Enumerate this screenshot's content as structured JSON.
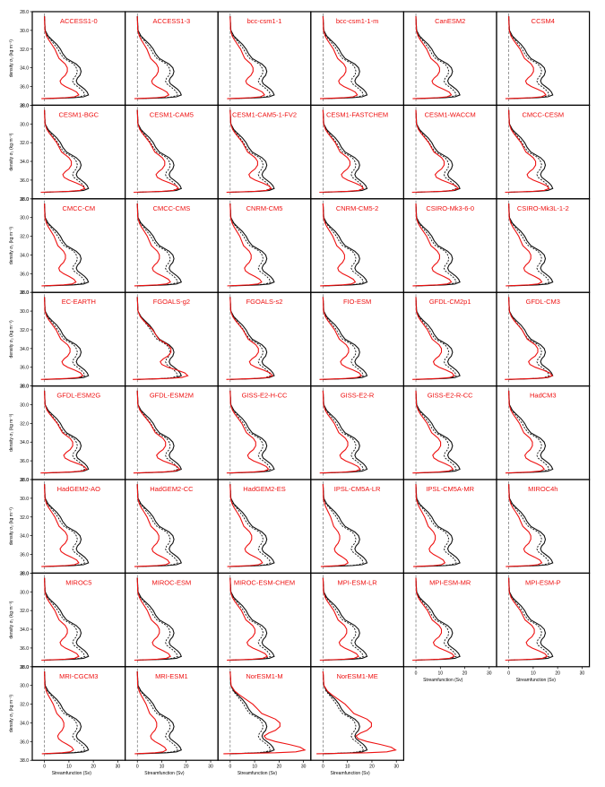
{
  "figure": {
    "colors": {
      "model": "#ee1111",
      "reference": "#111111",
      "axes": "#000000",
      "zero_line": "#555555"
    },
    "ylabel": "density σ₂ (kg m⁻³)",
    "xlabel": "Streamfunction (Sv)",
    "y_ticks": [
      "28.0",
      "30.0",
      "32.0",
      "34.0",
      "36.0",
      "38.0"
    ],
    "x_ticks": [
      "0",
      "10",
      "20",
      "30"
    ],
    "models": [
      "ACCESS1-0",
      "ACCESS1-3",
      "bcc-csm1-1",
      "bcc-csm1-1-m",
      "CanESM2",
      "CCSM4",
      "CESM1-BGC",
      "CESM1-CAM5",
      "CESM1-CAM5-1-FV2",
      "CESM1-FASTCHEM",
      "CESM1-WACCM",
      "CMCC-CESM",
      "CMCC-CM",
      "CMCC-CMS",
      "CNRM-CM5",
      "CNRM-CM5-2",
      "CSIRO-Mk3-6-0",
      "CSIRO-Mk3L-1-2",
      "EC-EARTH",
      "FGOALS-g2",
      "FGOALS-s2",
      "FIO-ESM",
      "GFDL-CM2p1",
      "GFDL-CM3",
      "GFDL-ESM2G",
      "GFDL-ESM2M",
      "GISS-E2-H-CC",
      "GISS-E2-R",
      "GISS-E2-R-CC",
      "HadCM3",
      "HadGEM2-AO",
      "HadGEM2-CC",
      "HadGEM2-ES",
      "IPSL-CM5A-LR",
      "IPSL-CM5A-MR",
      "MIROC4h",
      "MIROC5",
      "MIROC-ESM",
      "MIROC-ESM-CHEM",
      "MPI-ESM-LR",
      "MPI-ESM-MR",
      "MPI-ESM-P",
      "MRI-CGCM3",
      "MRI-ESM1",
      "NorESM1-M",
      "NorESM1-ME"
    ]
  },
  "chart_data": {
    "type": "line",
    "layout": "small multiples, 6 columns x 8 rows (46 panels)",
    "xlim": [
      -5,
      33
    ],
    "ylim": [
      38.0,
      28.0
    ],
    "y_inverted": true,
    "grid": false,
    "reference": {
      "description": "black solid and dashed reference profiles (same in every panel)",
      "solid": {
        "x": [
          0,
          0.3,
          1.5,
          3,
          5,
          6.5,
          7.5,
          9,
          11,
          13,
          14.5,
          15,
          14.5,
          13.5,
          13,
          13.5,
          15,
          16.5,
          17.5,
          18,
          16,
          12,
          6,
          0
        ],
        "y": [
          28.5,
          30.0,
          30.6,
          31.0,
          31.5,
          32.0,
          32.5,
          33.0,
          33.3,
          33.6,
          34.0,
          34.4,
          34.8,
          35.1,
          35.4,
          35.7,
          36.0,
          36.3,
          36.6,
          36.9,
          37.1,
          37.2,
          37.25,
          37.3
        ]
      },
      "dashed": {
        "x": [
          0,
          0.3,
          1.2,
          2.5,
          4,
          5.5,
          6.5,
          8,
          10,
          12,
          13,
          13.5,
          13,
          12,
          11.5,
          12,
          13.5,
          15,
          16,
          16.5,
          14.5,
          11,
          5,
          0
        ],
        "y": [
          28.5,
          30.0,
          30.6,
          31.0,
          31.5,
          32.0,
          32.5,
          33.0,
          33.3,
          33.6,
          34.0,
          34.4,
          34.8,
          35.1,
          35.4,
          35.7,
          36.0,
          36.3,
          36.6,
          36.9,
          37.1,
          37.2,
          37.25,
          37.3
        ]
      }
    },
    "model_profile_y": [
      28.5,
      30.0,
      30.6,
      31.0,
      31.5,
      32.0,
      32.5,
      33.0,
      33.3,
      33.6,
      34.0,
      34.4,
      34.8,
      35.1,
      35.4,
      35.7,
      36.0,
      36.3,
      36.6,
      36.9,
      37.1,
      37.2,
      37.25,
      37.3
    ],
    "model_profile_x_base": [
      0,
      0.2,
      1,
      2,
      3.5,
      5,
      6,
      7,
      8.5,
      10,
      11,
      11,
      10,
      8.5,
      7.5,
      8,
      10,
      13,
      15.5,
      16.5,
      14.5,
      10,
      4,
      -1.5
    ],
    "model_scale": [
      0.85,
      0.78,
      0.85,
      0.85,
      0.88,
      0.92,
      1.0,
      1.02,
      1.02,
      1.0,
      1.05,
      1.0,
      0.78,
      0.82,
      0.78,
      0.8,
      0.88,
      0.82,
      0.95,
      1.25,
      1.05,
      0.95,
      0.95,
      1.08,
      1.05,
      1.05,
      0.95,
      0.92,
      0.92,
      0.88,
      0.85,
      0.8,
      0.8,
      0.62,
      0.72,
      0.82,
      0.85,
      0.82,
      0.92,
      0.88,
      0.95,
      0.95,
      0.72,
      0.72,
      1.85,
      1.8
    ]
  }
}
